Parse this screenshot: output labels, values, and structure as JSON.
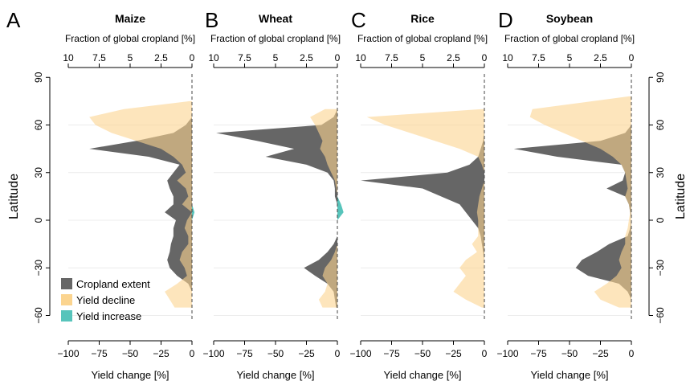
{
  "figure": {
    "ylabel": "Latitude",
    "yticks": [
      -60,
      -30,
      0,
      30,
      60,
      90
    ],
    "top_axis_label": "Fraction of global cropland [%]",
    "top_ticks": [
      "10",
      "7.5",
      "5",
      "2.5",
      "0"
    ],
    "bottom_axis_label": "Yield change [%]",
    "bottom_ticks": [
      "−100",
      "−75",
      "−50",
      "−25",
      "0"
    ],
    "legend": [
      {
        "label": "Cropland extent",
        "color": "#666666"
      },
      {
        "label": "Yield decline",
        "color": "#fbd48f"
      },
      {
        "label": "Yield increase",
        "color": "#57c4bb"
      }
    ]
  },
  "chart_data": [
    {
      "type": "area",
      "letter": "A",
      "title": "Maize",
      "xlabel": "Yield change [%]",
      "xlim": [
        -100,
        0
      ],
      "top_xlabel": "Fraction of global cropland [%]",
      "top_xlim": [
        10,
        0
      ],
      "ylabel": "Latitude",
      "ylim": [
        -70,
        90
      ],
      "latitudes": [
        75,
        70,
        65,
        60,
        55,
        50,
        45,
        40,
        35,
        30,
        25,
        20,
        15,
        10,
        5,
        0,
        -5,
        -10,
        -15,
        -20,
        -25,
        -30,
        -35,
        -40,
        -45,
        -50,
        -55
      ],
      "series": [
        {
          "name": "Cropland extent",
          "color": "#666666",
          "unit": "%",
          "values": [
            0,
            0,
            0,
            0.5,
            1.5,
            4.5,
            8.3,
            3.5,
            1.0,
            1.5,
            2.0,
            1.8,
            1.5,
            1.5,
            2.2,
            1.3,
            1.5,
            1.5,
            1.7,
            1.8,
            2.0,
            1.8,
            1.2,
            0.3,
            0,
            0,
            0
          ]
        },
        {
          "name": "Yield decline",
          "color": "#fbd48f",
          "unit": "%",
          "values": [
            -2,
            -55,
            -83,
            -78,
            -65,
            -45,
            -25,
            -15,
            -8,
            -5,
            -12,
            -5,
            -3,
            -8,
            0,
            -4,
            -6,
            -3,
            -3,
            -8,
            -10,
            -6,
            -4,
            -12,
            -22,
            -18,
            -14
          ]
        },
        {
          "name": "Yield increase",
          "color": "#57c4bb",
          "unit": "%",
          "values": [
            0,
            0,
            0,
            0,
            0,
            0,
            0,
            0,
            0,
            0,
            0,
            0,
            0,
            0,
            2,
            0,
            0,
            0,
            0,
            0,
            0,
            0,
            0,
            0,
            0,
            0,
            0
          ]
        }
      ]
    },
    {
      "type": "area",
      "letter": "B",
      "title": "Wheat",
      "xlabel": "Yield change [%]",
      "xlim": [
        -100,
        0
      ],
      "top_xlabel": "Fraction of global cropland [%]",
      "top_xlim": [
        10,
        0
      ],
      "ylabel": "Latitude",
      "ylim": [
        -70,
        90
      ],
      "latitudes": [
        70,
        65,
        60,
        55,
        50,
        45,
        40,
        35,
        30,
        25,
        20,
        15,
        10,
        5,
        0,
        -5,
        -10,
        -15,
        -20,
        -25,
        -30,
        -35,
        -40,
        -45,
        -50,
        -55
      ],
      "series": [
        {
          "name": "Cropland extent",
          "color": "#666666",
          "unit": "%",
          "values": [
            0,
            0.3,
            1.3,
            9.8,
            6.5,
            3.5,
            5.8,
            2.5,
            0.8,
            0.3,
            0.2,
            0.2,
            0,
            0,
            0,
            0,
            0,
            0.3,
            0.8,
            1.5,
            2.7,
            1.8,
            0.8,
            0.3,
            0.2,
            0.1
          ]
        },
        {
          "name": "Yield decline",
          "color": "#fbd48f",
          "unit": "%",
          "values": [
            -10,
            -22,
            -18,
            -15,
            -12,
            -14,
            -10,
            -8,
            -5,
            -2,
            -1,
            0,
            0,
            0,
            0,
            0,
            0,
            0,
            -2,
            -5,
            -10,
            -12,
            -8,
            -10,
            -15,
            -12
          ]
        },
        {
          "name": "Yield increase",
          "color": "#57c4bb",
          "unit": "%",
          "values": [
            0,
            0,
            0,
            0,
            0,
            0,
            0,
            0,
            0,
            0,
            0,
            0,
            3,
            5,
            0,
            0,
            0,
            0,
            0,
            0,
            0,
            0,
            0,
            0,
            0,
            0
          ]
        }
      ]
    },
    {
      "type": "area",
      "letter": "C",
      "title": "Rice",
      "xlabel": "Yield change [%]",
      "xlim": [
        -100,
        0
      ],
      "top_xlabel": "Fraction of global cropland [%]",
      "top_xlim": [
        10,
        0
      ],
      "ylabel": "Latitude",
      "ylim": [
        -70,
        90
      ],
      "latitudes": [
        70,
        65,
        60,
        55,
        50,
        45,
        40,
        35,
        30,
        25,
        20,
        15,
        10,
        5,
        0,
        -5,
        -10,
        -15,
        -20,
        -25,
        -30,
        -35,
        -40,
        -45,
        -50,
        -55
      ],
      "series": [
        {
          "name": "Cropland extent",
          "color": "#666666",
          "unit": "%",
          "values": [
            0,
            0,
            0,
            0,
            0.1,
            0.3,
            0.5,
            1.2,
            3.0,
            10.0,
            5.0,
            3.5,
            2.0,
            1.5,
            1.0,
            0.5,
            0.3,
            0.2,
            0.1,
            0,
            0,
            0,
            0,
            0,
            0,
            0
          ]
        },
        {
          "name": "Yield decline",
          "color": "#fbd48f",
          "unit": "%",
          "values": [
            -2,
            -95,
            -80,
            -60,
            -40,
            -20,
            -5,
            -2,
            0,
            0,
            -2,
            -4,
            -5,
            -6,
            -5,
            -5,
            -5,
            -10,
            -6,
            -15,
            -20,
            -15,
            -20,
            -25,
            -15,
            -2
          ]
        },
        {
          "name": "Yield increase",
          "color": "#57c4bb",
          "unit": "%",
          "values": [
            0,
            0,
            0,
            0,
            0,
            0,
            0,
            0,
            0,
            0,
            0,
            0,
            0,
            0,
            0,
            0,
            0,
            0,
            0,
            0,
            0,
            0,
            0,
            0,
            0,
            0
          ]
        }
      ]
    },
    {
      "type": "area",
      "letter": "D",
      "title": "Soybean",
      "xlabel": "Yield change [%]",
      "xlim": [
        -100,
        0
      ],
      "top_xlabel": "Fraction of global cropland [%]",
      "top_xlim": [
        10,
        0
      ],
      "ylabel": "Latitude",
      "ylim": [
        -70,
        90
      ],
      "latitudes": [
        78,
        70,
        65,
        60,
        55,
        50,
        45,
        40,
        35,
        30,
        25,
        20,
        15,
        10,
        5,
        0,
        -5,
        -10,
        -15,
        -20,
        -25,
        -30,
        -35,
        -40,
        -45,
        -50,
        -55
      ],
      "series": [
        {
          "name": "Cropland extent",
          "color": "#666666",
          "unit": "%",
          "values": [
            0,
            0,
            0,
            0,
            0.5,
            2.5,
            9.5,
            6.0,
            0.8,
            0.5,
            0.7,
            2.0,
            0.5,
            0.2,
            0.1,
            0,
            0.1,
            0.3,
            1.8,
            2.8,
            4.0,
            4.5,
            3.5,
            1.0,
            0.3,
            0,
            0
          ]
        },
        {
          "name": "Yield decline",
          "color": "#fbd48f",
          "unit": "%",
          "values": [
            -2,
            -80,
            -82,
            -70,
            -55,
            -40,
            -25,
            -15,
            -8,
            -5,
            -4,
            -3,
            -5,
            -2,
            -1,
            -2,
            -3,
            -5,
            -5,
            -8,
            -10,
            -8,
            -12,
            -20,
            -30,
            -25,
            -10
          ]
        },
        {
          "name": "Yield increase",
          "color": "#57c4bb",
          "unit": "%",
          "values": [
            0,
            0,
            0,
            0,
            0,
            0,
            0,
            0,
            0,
            0,
            0,
            0,
            0,
            0,
            0,
            0,
            0,
            0,
            0,
            0,
            0,
            0,
            0,
            0,
            0,
            0,
            0
          ]
        }
      ]
    }
  ]
}
